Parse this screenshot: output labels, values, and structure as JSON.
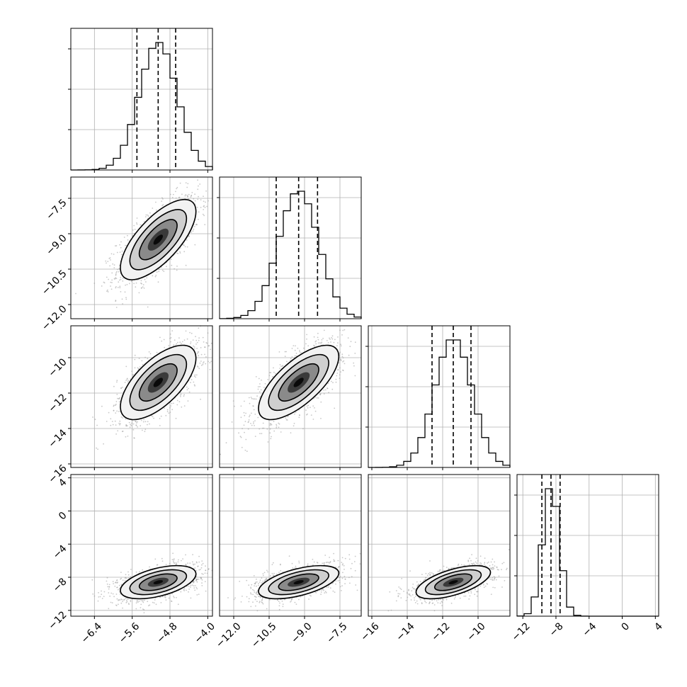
{
  "chart_data": {
    "type": "corner",
    "grid": true,
    "parameters": [
      {
        "range": [
          -6.9,
          -3.9
        ],
        "ticks": [
          -6.4,
          -5.6,
          -4.8,
          -4.0
        ],
        "tick_labels": [
          "−6.4",
          "−5.6",
          "−4.8",
          "−4.0"
        ],
        "quantiles": [
          -5.5,
          -5.05,
          -4.68
        ],
        "mean": -5.05,
        "sd": 0.4
      },
      {
        "range": [
          -12.6,
          -6.6
        ],
        "ticks": [
          -12.0,
          -10.5,
          -9.0,
          -7.5
        ],
        "tick_labels": [
          "−12.0",
          "−10.5",
          "−9.0",
          "−7.5"
        ],
        "quantiles": [
          -10.2,
          -9.25,
          -8.45
        ],
        "mean": -9.25,
        "sd": 0.85
      },
      {
        "range": [
          -16.2,
          -8.2
        ],
        "ticks": [
          -16,
          -14,
          -12,
          -10
        ],
        "tick_labels": [
          "−16",
          "−14",
          "−12",
          "−10"
        ],
        "quantiles": [
          -12.6,
          -11.4,
          -10.4
        ],
        "mean": -11.4,
        "sd": 1.05
      },
      {
        "range": [
          -12.7,
          4.4
        ],
        "ticks": [
          -12,
          -8,
          -4,
          0,
          4
        ],
        "tick_labels": [
          "−12",
          "−8",
          "−4",
          "0",
          "4"
        ],
        "quantiles": [
          -9.7,
          -8.6,
          -7.5
        ],
        "mean": -8.6,
        "sd": 1.0
      }
    ],
    "correlations": [
      [
        1,
        0.7,
        0.65,
        0.5
      ],
      [
        0.7,
        1,
        0.7,
        0.55
      ],
      [
        0.65,
        0.7,
        1,
        0.6
      ],
      [
        0.5,
        0.55,
        0.6,
        1
      ]
    ],
    "histogram_bins": 20,
    "contour_levels": 3
  }
}
